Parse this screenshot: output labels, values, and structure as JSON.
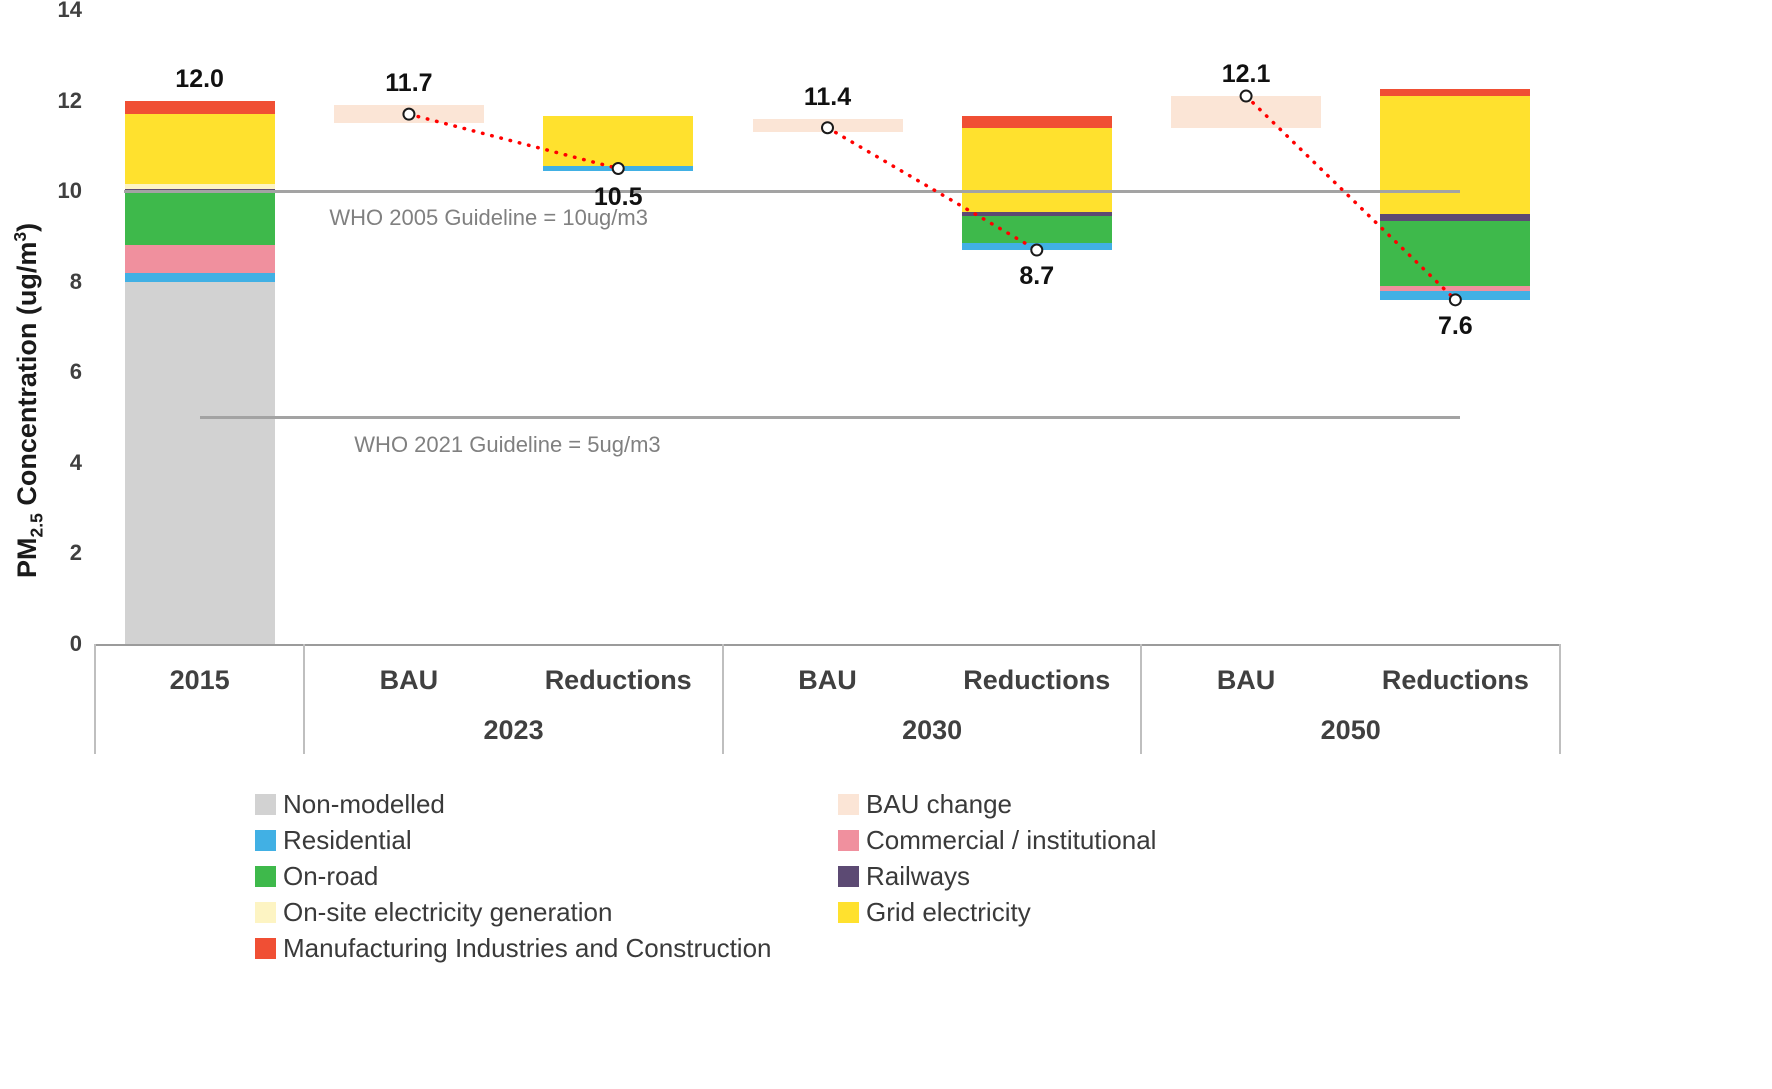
{
  "chart_data": {
    "type": "bar",
    "title": "",
    "ylabel_parts": {
      "pre": "PM",
      "sub": "2.5",
      "mid": " Concentration (ug/m",
      "sup": "3",
      "post": ")"
    },
    "ylim": [
      0,
      14
    ],
    "yticks": [
      0,
      2,
      4,
      6,
      8,
      10,
      12,
      14
    ],
    "grid": false,
    "legend_position": "bottom",
    "series_colors": {
      "Non-modelled": "#d2d2d2",
      "BAU change": "#fbe5d6",
      "Residential": "#41b0e4",
      "Commercial / institutional": "#f0909e",
      "On-road": "#3eb94b",
      "Railways": "#5c4a73",
      "On-site electricity generation": "#fdf4c3",
      "Grid electricity": "#ffe12e",
      "Manufacturing Industries and Construction": "#f04f34"
    },
    "columns": [
      "2015",
      "BAU",
      "Reductions",
      "BAU",
      "Reductions",
      "BAU",
      "Reductions"
    ],
    "groups": [
      {
        "label": "",
        "span": 1
      },
      {
        "label": "2023",
        "span": 2
      },
      {
        "label": "2030",
        "span": 2
      },
      {
        "label": "2050",
        "span": 2
      }
    ],
    "bars": [
      {
        "column": 0,
        "value_label": "12.0",
        "label_position": "above",
        "marker_value": null,
        "segments": [
          {
            "series": "Non-modelled",
            "from": 0,
            "to": 8.0
          },
          {
            "series": "Residential",
            "from": 8.0,
            "to": 8.2
          },
          {
            "series": "Commercial / institutional",
            "from": 8.2,
            "to": 8.8
          },
          {
            "series": "On-road",
            "from": 8.8,
            "to": 9.95
          },
          {
            "series": "Railways",
            "from": 9.95,
            "to": 10.05
          },
          {
            "series": "On-site electricity generation",
            "from": 10.05,
            "to": 10.15
          },
          {
            "series": "Grid electricity",
            "from": 10.15,
            "to": 11.7
          },
          {
            "series": "Manufacturing Industries and Construction",
            "from": 11.7,
            "to": 12.0
          }
        ]
      },
      {
        "column": 1,
        "value_label": "11.7",
        "label_position": "above",
        "marker_value": 11.7,
        "segments": [
          {
            "series": "BAU change",
            "from": 11.5,
            "to": 11.9
          }
        ]
      },
      {
        "column": 2,
        "value_label": "10.5",
        "label_position": "below",
        "marker_value": 10.5,
        "segments": [
          {
            "series": "Residential",
            "from": 10.45,
            "to": 10.55
          },
          {
            "series": "Grid electricity",
            "from": 10.55,
            "to": 11.65
          }
        ]
      },
      {
        "column": 3,
        "value_label": "11.4",
        "label_position": "above",
        "marker_value": 11.4,
        "segments": [
          {
            "series": "BAU change",
            "from": 11.3,
            "to": 11.6
          }
        ]
      },
      {
        "column": 4,
        "value_label": "8.7",
        "label_position": "below",
        "marker_value": 8.7,
        "segments": [
          {
            "series": "Residential",
            "from": 8.7,
            "to": 8.85
          },
          {
            "series": "On-road",
            "from": 8.85,
            "to": 9.45
          },
          {
            "series": "Railways",
            "from": 9.45,
            "to": 9.55
          },
          {
            "series": "Grid electricity",
            "from": 9.55,
            "to": 11.4
          },
          {
            "series": "Manufacturing Industries and Construction",
            "from": 11.4,
            "to": 11.65
          }
        ]
      },
      {
        "column": 5,
        "value_label": "12.1",
        "label_position": "above",
        "marker_value": 12.1,
        "segments": [
          {
            "series": "BAU change",
            "from": 11.4,
            "to": 12.1
          }
        ]
      },
      {
        "column": 6,
        "value_label": "7.6",
        "label_position": "below",
        "marker_value": 7.6,
        "segments": [
          {
            "series": "Residential",
            "from": 7.6,
            "to": 7.8
          },
          {
            "series": "Commercial / institutional",
            "from": 7.8,
            "to": 7.9
          },
          {
            "series": "On-road",
            "from": 7.9,
            "to": 9.35
          },
          {
            "series": "Railways",
            "from": 9.35,
            "to": 9.5
          },
          {
            "series": "Grid electricity",
            "from": 9.5,
            "to": 12.1
          },
          {
            "series": "Manufacturing Industries and Construction",
            "from": 12.1,
            "to": 12.25
          }
        ]
      }
    ],
    "guidelines": [
      {
        "value": 10,
        "label": "WHO 2005 Guideline = 10ug/m3",
        "x1": 0.02,
        "x2": 0.932,
        "label_x": 0.16
      },
      {
        "value": 5,
        "label": "WHO 2021 Guideline = 5ug/m3",
        "x1": 0.072,
        "x2": 0.932,
        "label_x": 0.177
      }
    ],
    "connectors": [
      {
        "from_col": 1,
        "from_value": 11.7,
        "to_col": 2,
        "to_value": 10.5
      },
      {
        "from_col": 3,
        "from_value": 11.4,
        "to_col": 4,
        "to_value": 8.7
      },
      {
        "from_col": 5,
        "from_value": 12.1,
        "to_col": 6,
        "to_value": 7.6
      }
    ],
    "connector_color": "#ff0000",
    "legend_columns": [
      [
        "Non-modelled",
        "Residential",
        "On-road",
        "On-site electricity generation",
        "Manufacturing Industries and Construction"
      ],
      [
        "BAU change",
        "Commercial / institutional",
        "Railways",
        "Grid electricity"
      ]
    ]
  }
}
